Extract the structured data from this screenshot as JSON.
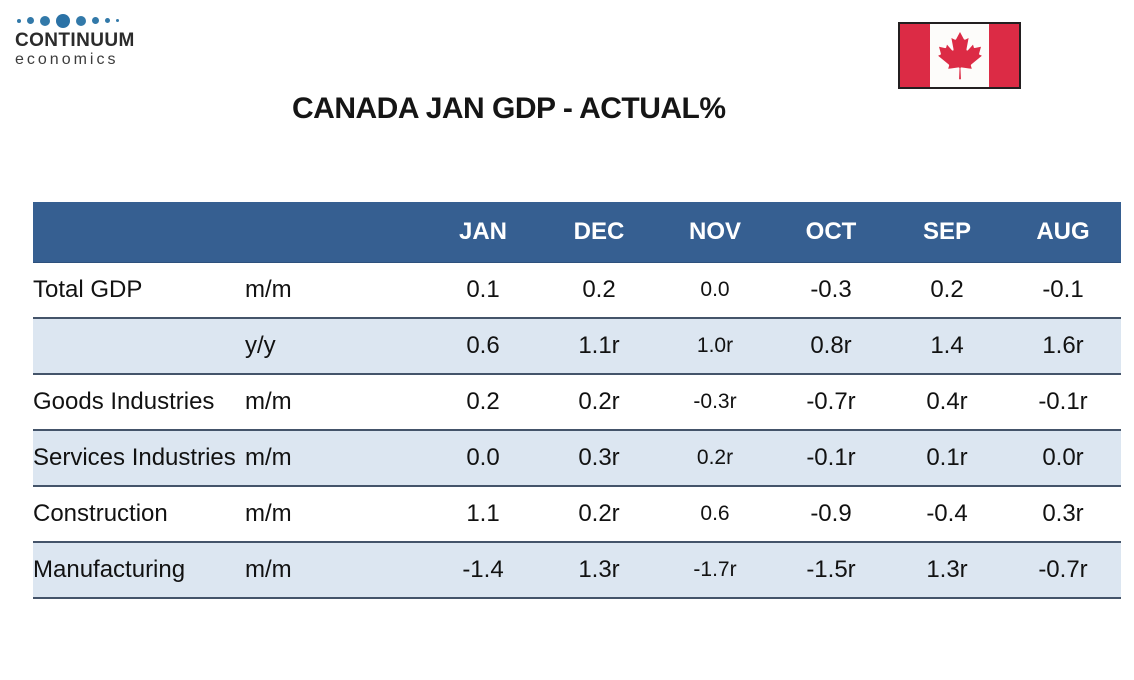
{
  "logo": {
    "line1": "CONTINUUM",
    "line2": "economics"
  },
  "flag": {
    "country": "Canada"
  },
  "colors": {
    "header_bg": "#365F91",
    "alt_row_bg": "#DCE6F1",
    "row_border": "#44546A",
    "flag_red": "#DC2B45",
    "dot_blue": "#3279A9",
    "dot_blue_dark": "#2B72A6"
  },
  "chart_data": {
    "type": "table",
    "title": "CANADA JAN GDP - ACTUAL%",
    "months": [
      "JAN",
      "DEC",
      "NOV",
      "OCT",
      "SEP",
      "AUG"
    ],
    "rows": [
      {
        "label": "Total GDP",
        "unit": "m/m",
        "values": [
          "0.1",
          "0.2",
          "0.0",
          "-0.3",
          "0.2",
          "-0.1"
        ]
      },
      {
        "label": "",
        "unit": "y/y",
        "values": [
          "0.6",
          "1.1r",
          "1.0r",
          "0.8r",
          "1.4",
          "1.6r"
        ]
      },
      {
        "label": "Goods Industries",
        "unit": "m/m",
        "values": [
          "0.2",
          "0.2r",
          "-0.3r",
          "-0.7r",
          "0.4r",
          "-0.1r"
        ]
      },
      {
        "label": "Services Industries",
        "unit": "m/m",
        "values": [
          "0.0",
          "0.3r",
          "0.2r",
          "-0.1r",
          "0.1r",
          "0.0r"
        ]
      },
      {
        "label": "Construction",
        "unit": "m/m",
        "values": [
          "1.1",
          "0.2r",
          "0.6",
          "-0.9",
          "-0.4",
          "0.3r"
        ]
      },
      {
        "label": "Manufacturing",
        "unit": "m/m",
        "values": [
          "-1.4",
          "1.3r",
          "-1.7r",
          "-1.5r",
          "1.3r",
          "-0.7r"
        ]
      }
    ]
  }
}
